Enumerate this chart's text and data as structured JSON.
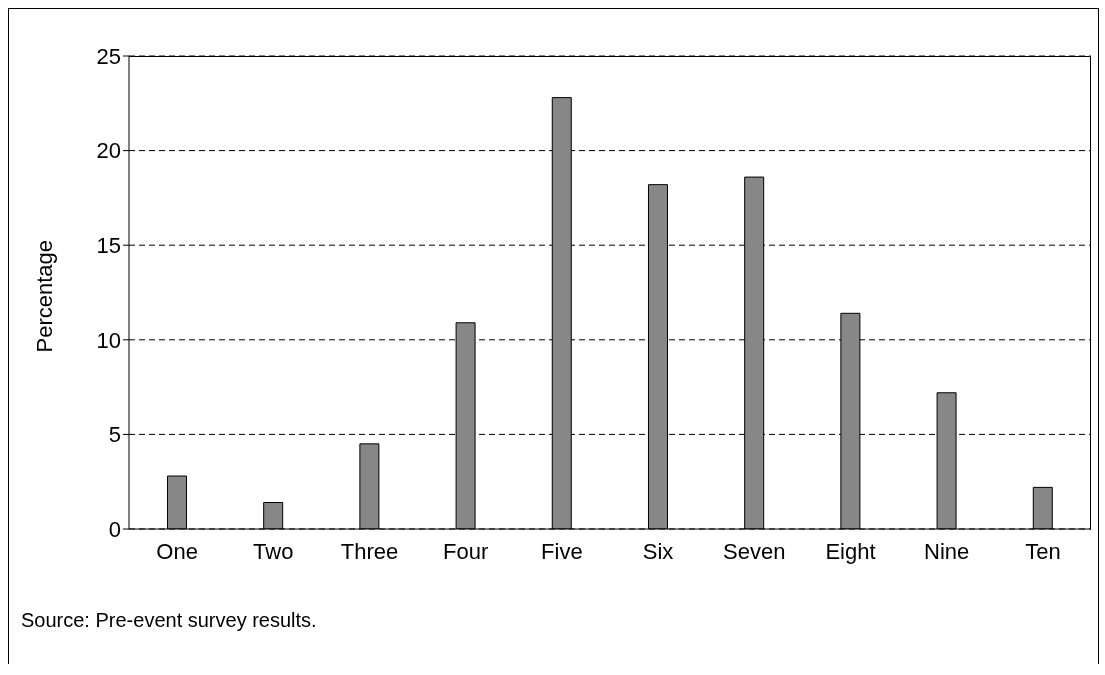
{
  "chart_data": {
    "type": "bar",
    "ylabel": "Percentage",
    "categories": [
      "One",
      "Two",
      "Three",
      "Four",
      "Five",
      "Six",
      "Seven",
      "Eight",
      "Nine",
      "Ten"
    ],
    "values": [
      2.8,
      1.4,
      4.5,
      10.9,
      22.8,
      18.2,
      18.6,
      11.4,
      7.2,
      2.2
    ],
    "color": "#878787",
    "ylim": [
      0,
      25
    ],
    "yticks": [
      0,
      5,
      10,
      15,
      20,
      25
    ],
    "grid": "y",
    "annotations": [
      "Source: Pre-event survey results."
    ]
  }
}
